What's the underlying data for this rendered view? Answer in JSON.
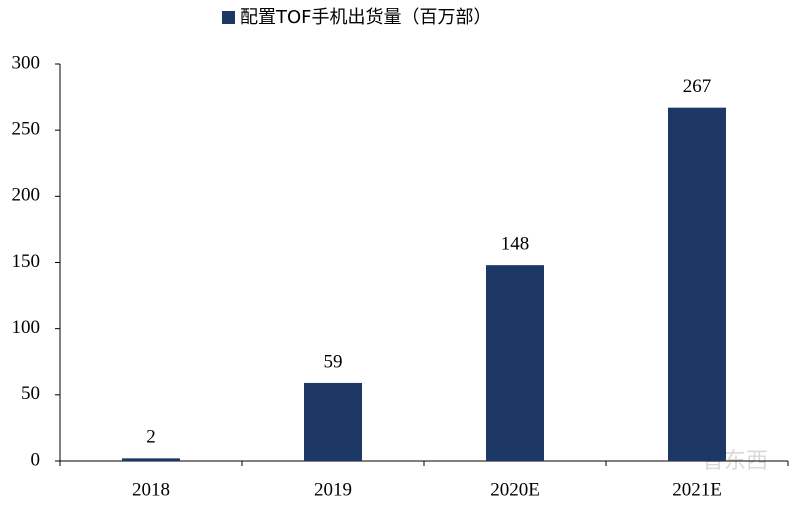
{
  "chart_data": {
    "type": "bar",
    "categories": [
      "2018",
      "2019",
      "2020E",
      "2021E"
    ],
    "series": [
      {
        "name": "配置TOF手机出货量（百万部）",
        "color": "#1d3864",
        "values": [
          2,
          59,
          148,
          267
        ]
      }
    ],
    "ylim": [
      0,
      300
    ],
    "yticks": [
      0,
      50,
      100,
      150,
      200,
      250,
      300
    ],
    "grid": false,
    "legend": "top",
    "watermark": "智东西"
  }
}
